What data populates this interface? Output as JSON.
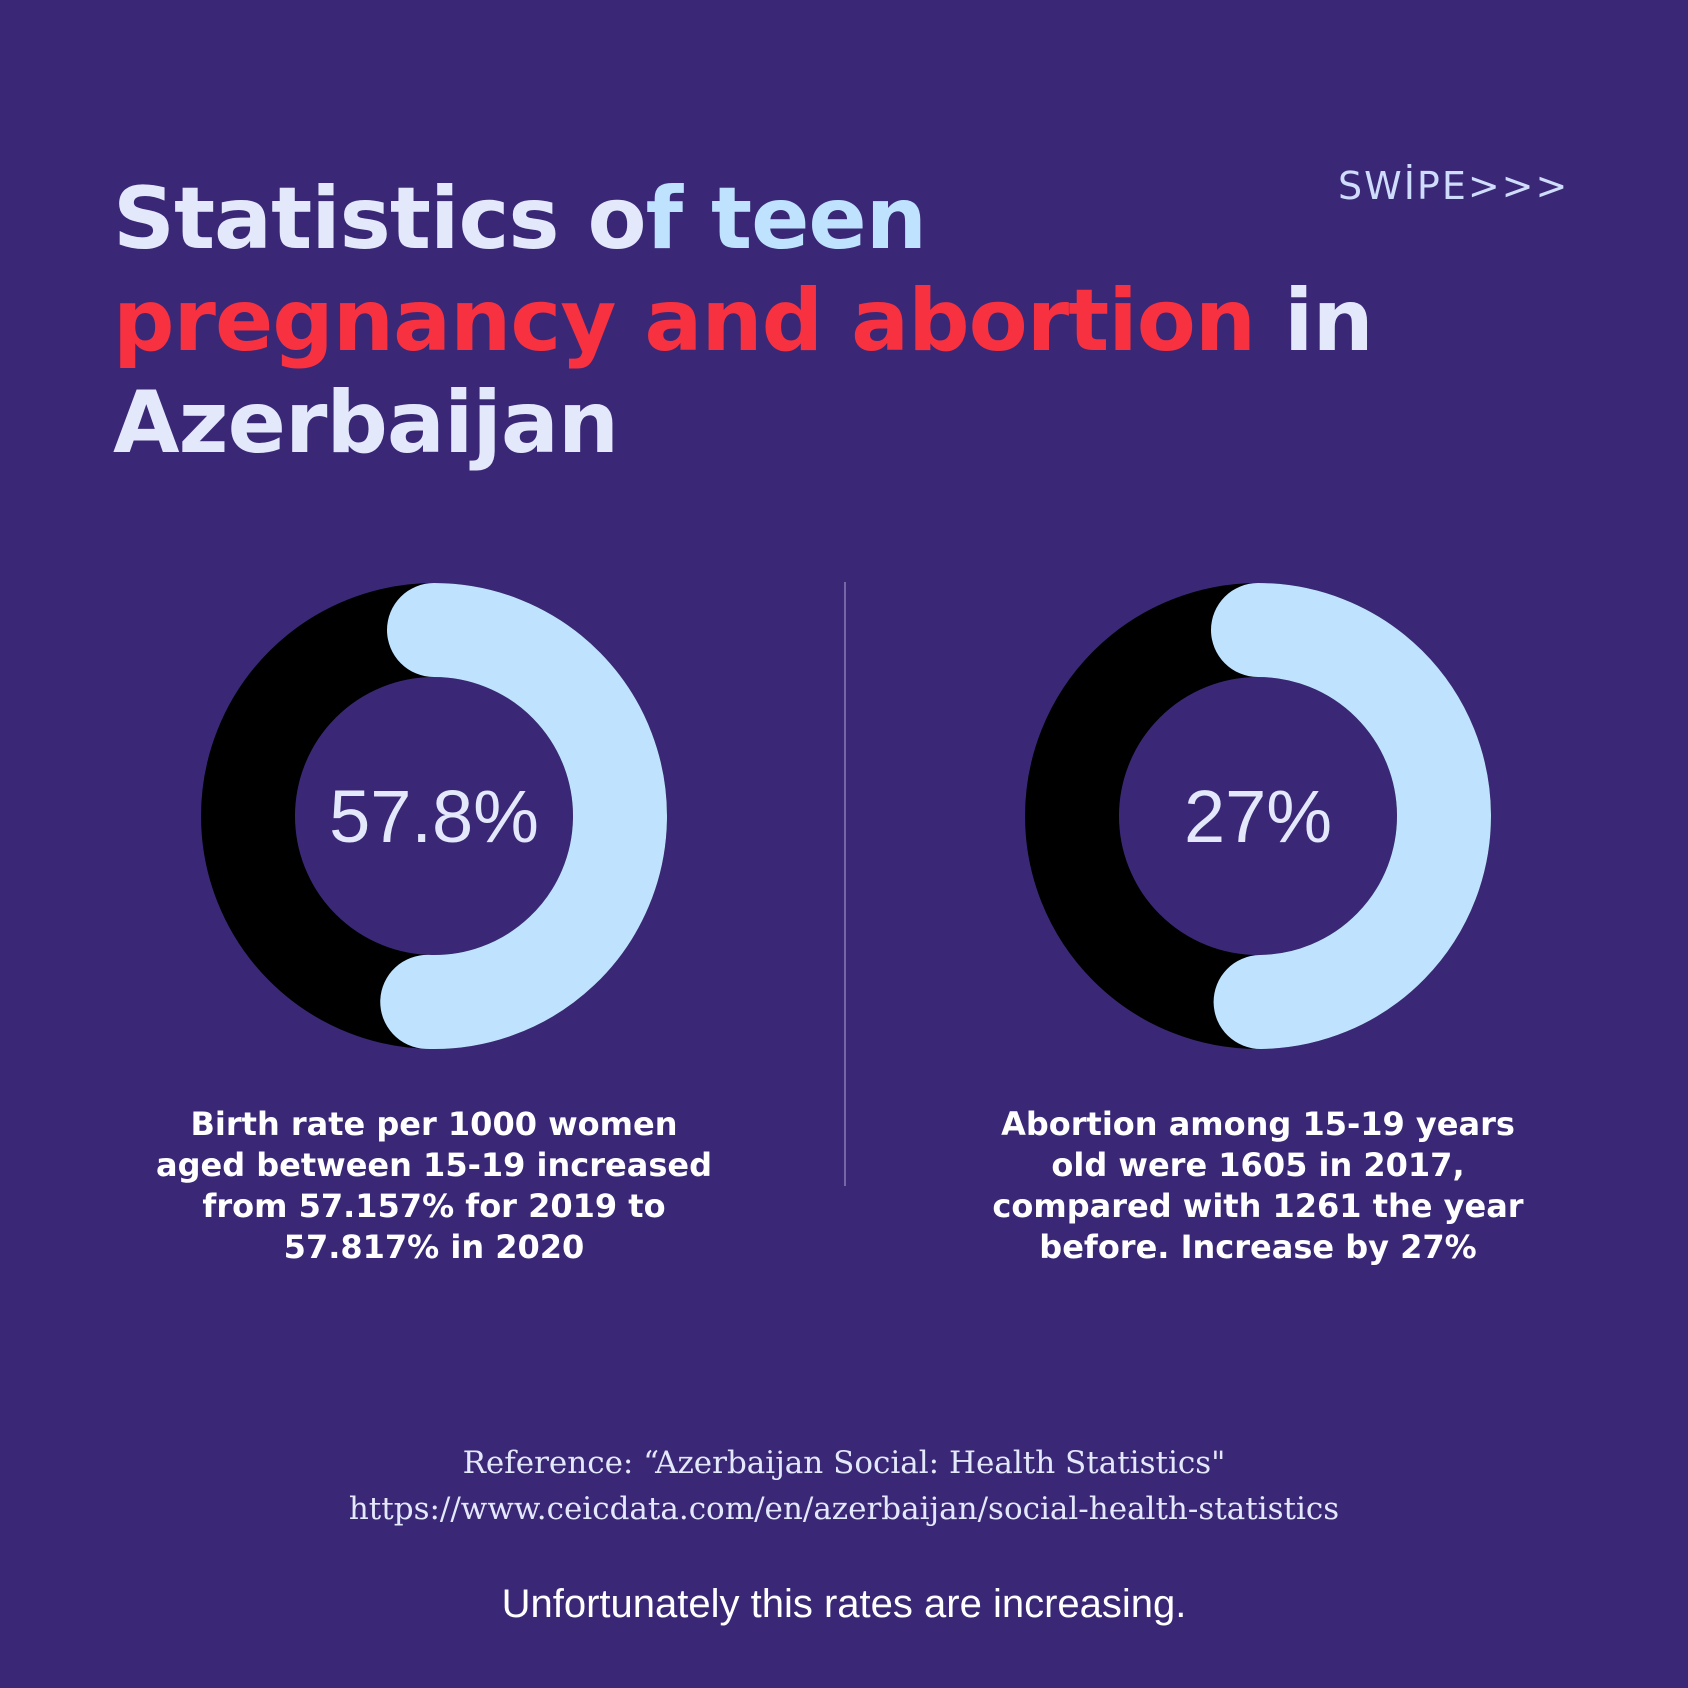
{
  "header": {
    "swipe": "SWİPE>>>",
    "title_part1": "Statistics o",
    "title_part2": "f teen",
    "title_part3": "pregnancy and abortion",
    "title_part4": " in",
    "title_part5": "Azerbaijan"
  },
  "colors": {
    "background": "#3a2877",
    "ring_track": "#000000",
    "ring_fill": "#bfe3ff",
    "highlight_red": "#f7313f"
  },
  "chart_data": [
    {
      "type": "pie",
      "variant": "donut",
      "center_label": "57.8%",
      "value": 57.8,
      "max": 100,
      "description": "Birth rate per 1000 women aged between 15-19 increased from 57.157% for 2019 to 57.817% in 2020"
    },
    {
      "type": "pie",
      "variant": "donut",
      "center_label": "27%",
      "value": 27,
      "max": 100,
      "description": "Abortion among 15-19 years old were 1605 in 2017, compared with 1261 the year before. Increase by 27%"
    }
  ],
  "reference": {
    "line1": "Reference: “Azerbaijan Social: Health Statistics\"",
    "line2": "https://www.ceicdata.com/en/azerbaijan/social-health-statistics"
  },
  "footer": {
    "note": "Unfortunately this rates are increasing."
  }
}
